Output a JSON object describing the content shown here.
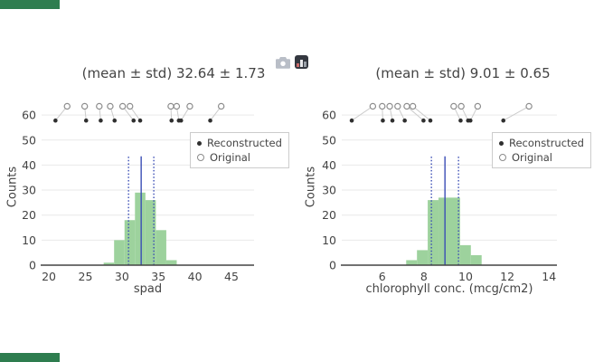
{
  "page": {
    "background": "#ffffff",
    "corner_accent_color": "#2e7d4f"
  },
  "modebar": {
    "icons": [
      {
        "name": "camera-icon"
      },
      {
        "name": "plotly-logo-icon"
      }
    ]
  },
  "colors": {
    "bar_fill": "#9dd29d",
    "mean_line": "#3a4db5",
    "std_line": "#3a4db5",
    "reconstructed_marker": "#2f2f2f",
    "original_marker_stroke": "#8c8c8c",
    "pair_line": "#cccccc",
    "gridline": "#e9e9e9",
    "axis_line": "#444444",
    "axis_text": "#444444",
    "legend_border": "#cccccc"
  },
  "chart_data": [
    {
      "type": "histogram+rug",
      "title": "(mean ± std) 32.64 ± 1.73",
      "xlabel": "spad",
      "ylabel": "Counts",
      "mean": 32.64,
      "std": 1.73,
      "xlim": [
        19.0,
        48.1
      ],
      "ylim": [
        0,
        68
      ],
      "x_ticks": [
        20,
        25,
        30,
        35,
        40,
        45
      ],
      "y_ticks": [
        0,
        10,
        20,
        30,
        40,
        50,
        60
      ],
      "grid": "horizontal",
      "hist": {
        "start": 27.5,
        "bin_width": 1.43,
        "counts": [
          1,
          10,
          18,
          29,
          26,
          14,
          2
        ]
      },
      "mean_line_top": 43.5,
      "std_lines": [
        30.91,
        34.37
      ],
      "rug": {
        "reconstructed_y": 57.8,
        "original_y": 63.5,
        "pairs": [
          [
            20.9,
            22.5
          ],
          [
            25.1,
            24.9
          ],
          [
            27.1,
            26.9
          ],
          [
            29.0,
            28.4
          ],
          [
            31.6,
            30.1
          ],
          [
            32.5,
            31.1
          ],
          [
            36.8,
            36.7
          ],
          [
            37.8,
            37.5
          ],
          [
            38.1,
            39.3
          ],
          [
            42.1,
            43.6
          ]
        ]
      },
      "legend": [
        {
          "label": "Reconstructed",
          "marker": "dot"
        },
        {
          "label": "Original",
          "marker": "circle"
        }
      ],
      "legend_position": "inside-top-right"
    },
    {
      "type": "histogram+rug",
      "title": "(mean ± std) 9.01 ± 0.65",
      "xlabel": "chlorophyll conc. (mcg/cm2)",
      "ylabel": "Counts",
      "mean": 9.01,
      "std": 0.65,
      "xlim": [
        4.06,
        14.38
      ],
      "ylim": [
        0,
        68
      ],
      "x_ticks": [
        6,
        8,
        10,
        12,
        14
      ],
      "y_ticks": [
        0,
        10,
        20,
        30,
        40,
        50,
        60
      ],
      "grid": "horizontal",
      "hist": {
        "start": 7.15,
        "bin_width": 0.517,
        "counts": [
          2,
          6,
          26,
          27,
          27,
          8,
          4
        ]
      },
      "mean_line_top": 43.5,
      "std_lines": [
        8.36,
        9.66
      ],
      "rug": {
        "reconstructed_y": 57.8,
        "original_y": 63.5,
        "pairs": [
          [
            4.54,
            5.55
          ],
          [
            6.03,
            6.0
          ],
          [
            6.49,
            6.36
          ],
          [
            7.08,
            6.74
          ],
          [
            7.98,
            7.18
          ],
          [
            8.31,
            7.47
          ],
          [
            9.76,
            9.43
          ],
          [
            10.12,
            9.79
          ],
          [
            10.23,
            10.58
          ],
          [
            11.81,
            13.04
          ]
        ]
      },
      "legend": [
        {
          "label": "Reconstructed",
          "marker": "dot"
        },
        {
          "label": "Original",
          "marker": "circle"
        }
      ],
      "legend_position": "inside-top-right"
    }
  ]
}
